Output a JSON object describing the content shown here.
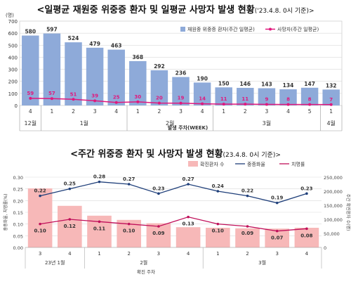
{
  "chart_data": [
    {
      "type": "bar",
      "title": "<일평균 재원중 위중증 환자 및 일평균 사망자 발생 현황",
      "subtitle": "('23.4.8. 0시 기준)>",
      "y_unit": "(명)",
      "xlabel": "발생 주차(WEEK)",
      "ylim": [
        0,
        700
      ],
      "yticks": [
        0,
        100,
        200,
        300,
        400,
        500,
        600,
        700
      ],
      "categories": [
        "4",
        "1",
        "2",
        "3",
        "4",
        "1",
        "2",
        "3",
        "4",
        "1",
        "2",
        "3",
        "4",
        "5",
        "1"
      ],
      "month_groups": [
        {
          "label": "12월",
          "count": 1
        },
        {
          "label": "1월",
          "count": 4
        },
        {
          "label": "2월",
          "count": 4
        },
        {
          "label": "3월",
          "count": 5
        },
        {
          "label": "4월",
          "count": 1
        }
      ],
      "series": [
        {
          "name": "재원중 위중증 환자(주간 일평균)",
          "type": "bar",
          "color": "#8eaad9",
          "values": [
            580,
            597,
            524,
            479,
            463,
            368,
            292,
            236,
            190,
            150,
            146,
            143,
            134,
            147,
            132
          ]
        },
        {
          "name": "사망자(주간 일평균)",
          "type": "line",
          "color": "#e0187d",
          "values": [
            59,
            57,
            51,
            39,
            25,
            30,
            20,
            19,
            14,
            11,
            11,
            9,
            8,
            8,
            7
          ]
        }
      ],
      "legend_position": "top-right",
      "grid": true
    },
    {
      "type": "bar",
      "title": "<주간 위중증 환자 및 사망자 발생 현황",
      "subtitle": "(23.4.8. 0시 기준)>",
      "ylabel_left": "중증화율, 치명률(%)",
      "ylabel_right": "주간 확진환자 수(명)",
      "xlabel": "확진 주차",
      "ylim_left": [
        0,
        0.3
      ],
      "yticks_left": [
        "0.00",
        "0.05",
        "0.10",
        "0.15",
        "0.20",
        "0.25",
        "0.30"
      ],
      "ylim_right": [
        0,
        250000
      ],
      "yticks_right": [
        "0",
        "50,000",
        "100,000",
        "150,000",
        "200,000",
        "250,000"
      ],
      "categories": [
        "3",
        "4",
        "1",
        "2",
        "3",
        "4",
        "1",
        "2",
        "3",
        "4"
      ],
      "month_groups": [
        {
          "label": "23년 1월",
          "count": 2
        },
        {
          "label": "2월",
          "count": 4
        },
        {
          "label": "3월",
          "count": 4
        }
      ],
      "series": [
        {
          "name": "확진환자 수",
          "type": "bar",
          "axis": "right",
          "color": "#f7b8b8",
          "values": [
            210000,
            148000,
            113000,
            98000,
            86000,
            72000,
            70000,
            68000,
            67000,
            70000
          ]
        },
        {
          "name": "중증화율",
          "type": "line",
          "axis": "left",
          "color": "#1f3f7a",
          "values": [
            0.22,
            0.25,
            0.28,
            0.27,
            0.23,
            0.27,
            0.24,
            0.22,
            0.19,
            0.23
          ]
        },
        {
          "name": "치명률",
          "type": "line",
          "axis": "left",
          "color": "#c0105a",
          "values": [
            0.1,
            0.12,
            0.11,
            0.1,
            0.09,
            0.13,
            0.1,
            0.09,
            0.07,
            0.08
          ]
        }
      ],
      "legend_position": "top",
      "grid": true
    }
  ]
}
